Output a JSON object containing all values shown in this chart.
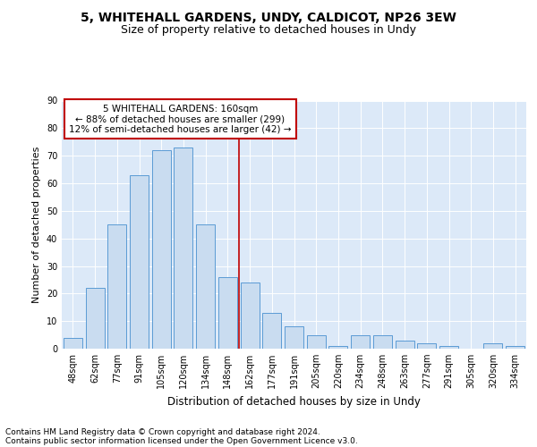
{
  "title1": "5, WHITEHALL GARDENS, UNDY, CALDICOT, NP26 3EW",
  "title2": "Size of property relative to detached houses in Undy",
  "xlabel": "Distribution of detached houses by size in Undy",
  "ylabel": "Number of detached properties",
  "footer1": "Contains HM Land Registry data © Crown copyright and database right 2024.",
  "footer2": "Contains public sector information licensed under the Open Government Licence v3.0.",
  "annotation_line1": "5 WHITEHALL GARDENS: 160sqm",
  "annotation_line2": "← 88% of detached houses are smaller (299)",
  "annotation_line3": "12% of semi-detached houses are larger (42) →",
  "bar_labels": [
    "48sqm",
    "62sqm",
    "77sqm",
    "91sqm",
    "105sqm",
    "120sqm",
    "134sqm",
    "148sqm",
    "162sqm",
    "177sqm",
    "191sqm",
    "205sqm",
    "220sqm",
    "234sqm",
    "248sqm",
    "263sqm",
    "277sqm",
    "291sqm",
    "305sqm",
    "320sqm",
    "334sqm"
  ],
  "bar_values": [
    4,
    22,
    45,
    63,
    72,
    73,
    45,
    26,
    24,
    13,
    8,
    5,
    1,
    5,
    5,
    3,
    2,
    1,
    0,
    2,
    1
  ],
  "bar_color": "#c9dcf0",
  "bar_edge_color": "#5b9bd5",
  "vline_color": "#c00000",
  "vline_index": 8,
  "ylim": [
    0,
    90
  ],
  "yticks": [
    0,
    10,
    20,
    30,
    40,
    50,
    60,
    70,
    80,
    90
  ],
  "fig_bg_color": "#ffffff",
  "plot_bg_color": "#dce9f8",
  "grid_color": "#ffffff",
  "annotation_box_color": "#c00000",
  "title1_fontsize": 10,
  "title2_fontsize": 9,
  "tick_fontsize": 7,
  "ylabel_fontsize": 8,
  "xlabel_fontsize": 8.5,
  "annotation_fontsize": 7.5,
  "footer_fontsize": 6.5
}
